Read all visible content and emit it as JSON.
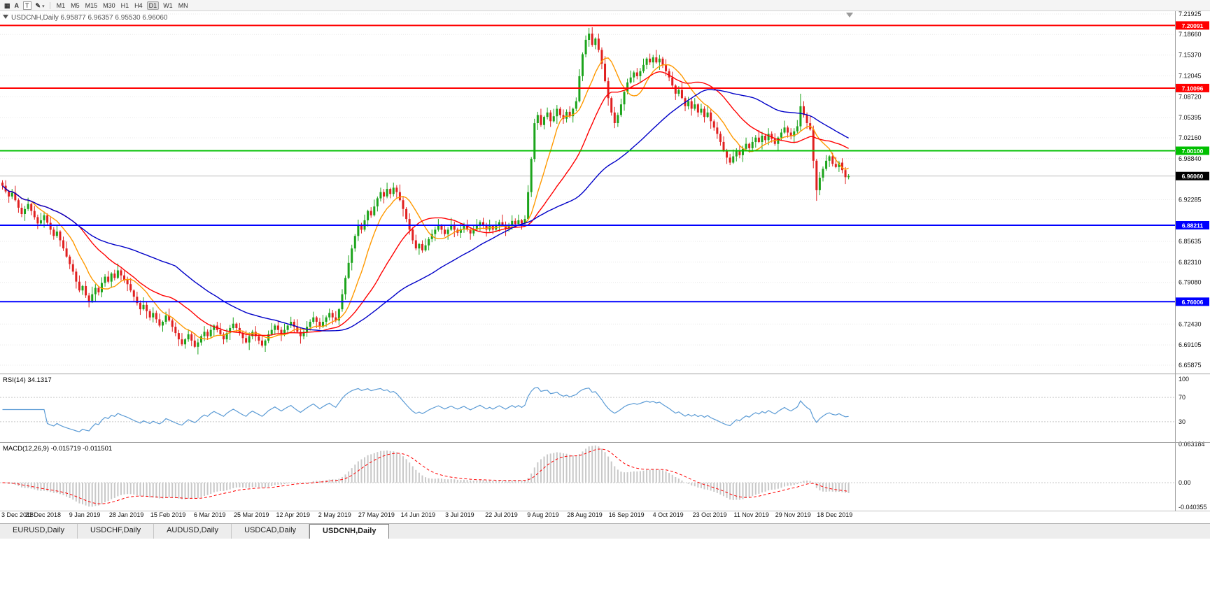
{
  "toolbar": {
    "buttons": [
      {
        "name": "charts-grid-icon",
        "glyph": "▦"
      },
      {
        "name": "annotate-text-button",
        "glyph": "A"
      },
      {
        "name": "template-button",
        "glyph": "T",
        "boxed": true
      },
      {
        "name": "draw-tools-button",
        "glyph": "✎",
        "caret": true
      }
    ],
    "caret": "▾",
    "timeframes": [
      "M1",
      "M5",
      "M15",
      "M30",
      "H1",
      "H4",
      "D1",
      "W1",
      "MN"
    ],
    "active_timeframe": "D1"
  },
  "chart": {
    "title_symbol": "USDCNH,Daily",
    "title_ohlc": "6.95877 6.96357 6.95530 6.96060"
  },
  "chart_data": {
    "type": "candlestick",
    "symbol": "USDCNH",
    "timeframe": "Daily",
    "last_bar": {
      "open": 6.95877,
      "high": 6.96357,
      "low": 6.9553,
      "close": 6.9606
    },
    "y_axis": {
      "min": 6.65875,
      "max": 7.21925,
      "ticks": [
        "7.21925",
        "7.18660",
        "7.15370",
        "7.12045",
        "7.08720",
        "7.05395",
        "7.02160",
        "6.98840",
        "6.92285",
        "6.85635",
        "6.82310",
        "6.79080",
        "6.72430",
        "6.69105",
        "6.65875"
      ]
    },
    "x_labels": [
      "3 Dec 2018",
      "21 Dec 2018",
      "9 Jan 2019",
      "28 Jan 2019",
      "15 Feb 2019",
      "6 Mar 2019",
      "25 Mar 2019",
      "12 Apr 2019",
      "2 May 2019",
      "27 May 2019",
      "14 Jun 2019",
      "3 Jul 2019",
      "22 Jul 2019",
      "9 Aug 2019",
      "28 Aug 2019",
      "16 Sep 2019",
      "4 Oct 2019",
      "23 Oct 2019",
      "11 Nov 2019",
      "29 Nov 2019",
      "18 Dec 2019"
    ],
    "x_label_interval_bars": 13,
    "open_rule": "previous_close",
    "first_open": 6.95,
    "closes": [
      6.945,
      6.936,
      6.928,
      6.934,
      6.922,
      6.91,
      6.9,
      6.908,
      6.916,
      6.905,
      6.895,
      6.885,
      6.89,
      6.898,
      6.886,
      6.875,
      6.865,
      6.872,
      6.858,
      6.845,
      6.832,
      6.82,
      6.808,
      6.792,
      6.778,
      6.785,
      6.77,
      6.76,
      6.772,
      6.782,
      6.775,
      6.79,
      6.8,
      6.792,
      6.805,
      6.798,
      6.81,
      6.802,
      6.795,
      6.788,
      6.778,
      6.768,
      6.758,
      6.748,
      6.755,
      6.745,
      6.735,
      6.742,
      6.732,
      6.722,
      6.728,
      6.738,
      6.73,
      6.72,
      6.71,
      6.7,
      6.692,
      6.7,
      6.708,
      6.698,
      6.688,
      6.695,
      6.705,
      6.712,
      6.705,
      6.715,
      6.722,
      6.715,
      6.708,
      6.7,
      6.71,
      6.718,
      6.725,
      6.718,
      6.71,
      6.702,
      6.695,
      6.705,
      6.712,
      6.705,
      6.698,
      6.69,
      6.698,
      6.708,
      6.715,
      6.722,
      6.715,
      6.708,
      6.715,
      6.722,
      6.728,
      6.72,
      6.712,
      6.705,
      6.712,
      6.72,
      6.728,
      6.735,
      6.728,
      6.72,
      6.728,
      6.735,
      6.742,
      6.735,
      6.73,
      6.748,
      6.772,
      6.798,
      6.822,
      6.845,
      6.865,
      6.882,
      6.875,
      6.89,
      6.905,
      6.898,
      6.912,
      6.925,
      6.935,
      6.928,
      6.94,
      6.932,
      6.942,
      6.935,
      6.922,
      6.908,
      6.892,
      6.875,
      6.858,
      6.845,
      6.852,
      6.842,
      6.85,
      6.86,
      6.868,
      6.875,
      6.882,
      6.875,
      6.868,
      6.875,
      6.882,
      6.875,
      6.87,
      6.876,
      6.882,
      6.875,
      6.869,
      6.875,
      6.881,
      6.887,
      6.881,
      6.875,
      6.881,
      6.875,
      6.881,
      6.887,
      6.882,
      6.877,
      6.883,
      6.889,
      6.884,
      6.89,
      6.885,
      6.892,
      6.935,
      6.988,
      7.045,
      7.058,
      7.042,
      7.055,
      7.062,
      7.048,
      7.056,
      7.068,
      7.058,
      7.052,
      7.063,
      7.056,
      7.068,
      7.08,
      7.12,
      7.155,
      7.178,
      7.188,
      7.17,
      7.18,
      7.162,
      7.14,
      7.112,
      7.085,
      7.062,
      7.045,
      7.058,
      7.075,
      7.095,
      7.11,
      7.118,
      7.126,
      7.12,
      7.128,
      7.138,
      7.148,
      7.142,
      7.15,
      7.142,
      7.148,
      7.138,
      7.128,
      7.118,
      7.105,
      7.092,
      7.098,
      7.085,
      7.072,
      7.08,
      7.068,
      7.075,
      7.062,
      7.068,
      7.055,
      7.062,
      7.048,
      7.038,
      7.028,
      7.015,
      7.002,
      6.99,
      6.982,
      6.992,
      7.002,
      6.994,
      7.004,
      7.012,
      7.005,
      7.015,
      7.022,
      7.015,
      7.025,
      7.018,
      7.028,
      7.02,
      7.012,
      7.022,
      7.03,
      7.038,
      7.03,
      7.024,
      7.032,
      7.04,
      7.072,
      7.058,
      7.045,
      7.035,
      6.985,
      6.938,
      6.958,
      6.972,
      6.985,
      6.992,
      6.98,
      6.975,
      6.982,
      6.97,
      6.95877,
      6.9606
    ],
    "wick_up_cycle": [
      0.004,
      0.009,
      0.002,
      0.006,
      0.011,
      0.003,
      0.007,
      0.005,
      0.01,
      0.002,
      0.008,
      0.004,
      0.012,
      0.006,
      0.003,
      0.009
    ],
    "wick_down_cycle": [
      0.006,
      0.003,
      0.01,
      0.004,
      0.002,
      0.008,
      0.005,
      0.011,
      0.003,
      0.007,
      0.004,
      0.009,
      0.002,
      0.012,
      0.005,
      0.008
    ],
    "wick_overrides": {
      "183": {
        "h": 7.197
      },
      "249": {
        "h": 7.092
      },
      "254": {
        "l": 6.921
      },
      "264": {
        "h": 6.96357,
        "l": 6.9553
      }
    },
    "bull_color": "#1CA41C",
    "bear_color": "#E02020",
    "moving_averages": [
      {
        "period": 10,
        "color": "#FF9900"
      },
      {
        "period": 25,
        "color": "#FF0000"
      },
      {
        "period": 55,
        "color": "#0000C8"
      }
    ],
    "hlines": [
      {
        "price": 7.20091,
        "label": "7.20091",
        "color": "#FF0000"
      },
      {
        "price": 7.10096,
        "label": "7.10096",
        "color": "#FF0000"
      },
      {
        "price": 7.001,
        "label": "7.00100",
        "color": "#00C000"
      },
      {
        "price": 6.88211,
        "label": "6.88211",
        "color": "#0000FF"
      },
      {
        "price": 6.76006,
        "label": "6.76006",
        "color": "#0000FF"
      }
    ],
    "current_price": {
      "value": 6.9606,
      "label": "6.96060",
      "tag_color": "#000000"
    }
  },
  "rsi": {
    "label": "RSI(14) 34.1317",
    "period": 14,
    "value": 34.1317,
    "levels": [
      "100",
      "70",
      "30"
    ],
    "line_color": "#5b9bd5"
  },
  "macd": {
    "label": "MACD(12,26,9) -0.015719 -0.011501",
    "main_value": -0.015719,
    "signal_value": -0.011501,
    "scale_labels": [
      "0.063184",
      "0.00",
      "-0.040355"
    ],
    "hist_color": "#c8c8c8",
    "signal_color": "#FF0000"
  },
  "tabs": {
    "items": [
      {
        "label": "EURUSD,Daily",
        "active": false
      },
      {
        "label": "USDCHF,Daily",
        "active": false
      },
      {
        "label": "AUDUSD,Daily",
        "active": false
      },
      {
        "label": "USDCAD,Daily",
        "active": false
      },
      {
        "label": "USDCNH,Daily",
        "active": true
      }
    ]
  }
}
